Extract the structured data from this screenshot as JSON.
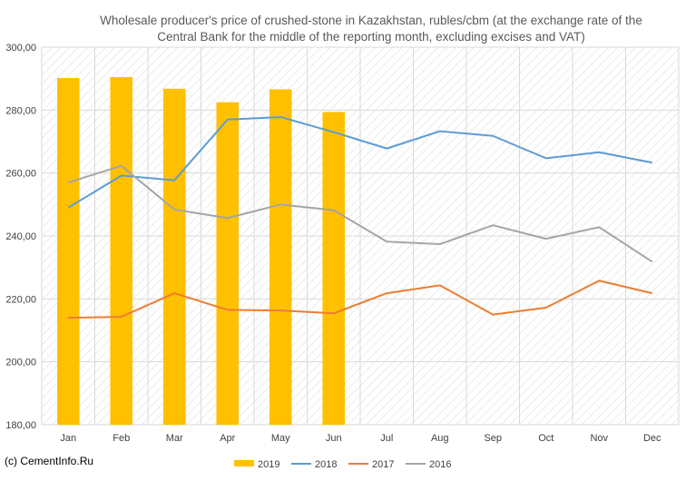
{
  "chart_data": {
    "type": "bar",
    "title_lines": [
      "Wholesale producer's price of crushed-stone in Kazakhstan, rubles/cbm (at the exchange rate of the",
      "Central Bank for the middle of the reporting month, excluding excises and VAT)"
    ],
    "categories": [
      "Jan",
      "Feb",
      "Mar",
      "Apr",
      "May",
      "Jun",
      "Jul",
      "Aug",
      "Sep",
      "Oct",
      "Nov",
      "Dec"
    ],
    "ylim": [
      180,
      300
    ],
    "y_ticks": [
      "180,00",
      "200,00",
      "220,00",
      "240,00",
      "260,00",
      "280,00",
      "300,00"
    ],
    "grid": true,
    "legend_position": "bottom",
    "series": [
      {
        "name": "2019",
        "kind": "bar",
        "color": "#FFC000",
        "values": [
          290.2,
          290.5,
          286.8,
          282.5,
          286.6,
          279.4,
          null,
          null,
          null,
          null,
          null,
          null
        ]
      },
      {
        "name": "2018",
        "kind": "line",
        "color": "#5B9BD5",
        "values": [
          249.0,
          259.2,
          257.7,
          277.0,
          277.8,
          273.0,
          267.8,
          273.3,
          271.8,
          264.7,
          266.6,
          263.3
        ]
      },
      {
        "name": "2017",
        "kind": "line",
        "color": "#ED7D31",
        "values": [
          214.0,
          214.3,
          221.8,
          216.5,
          216.3,
          215.4,
          221.8,
          224.3,
          215.0,
          217.2,
          225.8,
          221.8
        ]
      },
      {
        "name": "2016",
        "kind": "line",
        "color": "#A5A5A5",
        "values": [
          257.0,
          262.3,
          248.4,
          245.7,
          250.0,
          248.2,
          238.2,
          237.4,
          243.4,
          239.1,
          242.8,
          231.8
        ]
      }
    ]
  },
  "credit": "(c) CementInfo.Ru"
}
